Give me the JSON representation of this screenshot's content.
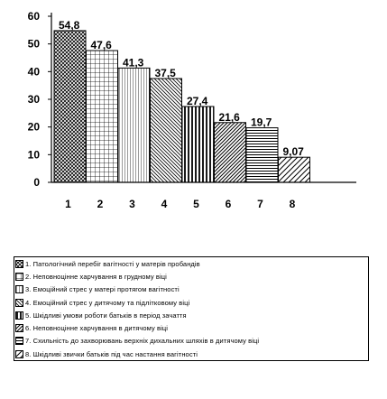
{
  "chart_data": {
    "type": "bar",
    "categories": [
      "1",
      "2",
      "3",
      "4",
      "5",
      "6",
      "7",
      "8"
    ],
    "values": [
      54.8,
      47.6,
      41.3,
      37.5,
      27.4,
      21.6,
      19.7,
      9.07
    ],
    "value_labels": [
      "54,8",
      "47,6",
      "41,3",
      "37,5",
      "27,4",
      "21,6",
      "19,7",
      "9,07"
    ],
    "ylim": [
      0,
      60
    ],
    "yticks": [
      "0",
      "10",
      "20",
      "30",
      "40",
      "50",
      "60"
    ],
    "grid": false,
    "patterns": [
      "cross-dense",
      "grid",
      "vertical-lines",
      "diagonal-down",
      "vertical-thick",
      "diagonal-up",
      "horizontal-lines",
      "diagonal-up-sparse"
    ],
    "legend": [
      "1. Патологічний перебіг вагітності у матерів пробандів",
      "2. Неповноцінне харчування в грудному віці",
      "3. Емоційний стрес у матері протягом вагітності",
      "4. Емоційний стрес у дитячому та підлітковому віці",
      "5. Шкідливі умови роботи батьків в період зачаття",
      "6. Неповноцінне харчування в дитячому віці",
      "7. Схильність до захворювань верхніх дихальних шляхів в дитячому віці",
      "8. Шкідливі звички батьків під час настання вагітності"
    ]
  }
}
